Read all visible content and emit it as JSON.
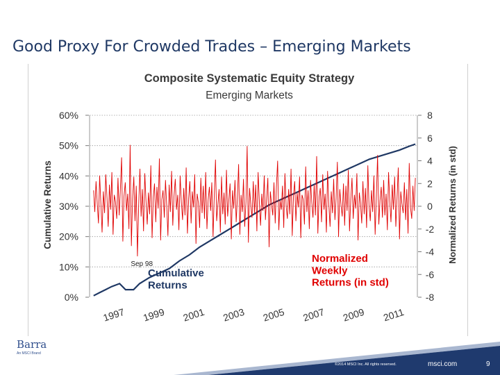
{
  "slide": {
    "title": "Good Proxy For Crowded Trades – Emerging Markets",
    "logo": "Barra",
    "logo_sub": "An MSCI Brand",
    "copyright": "©2014 MSCI Inc. All rights reserved.",
    "site": "msci.com",
    "page": "9"
  },
  "colors": {
    "cumulative": "#1f3864",
    "weekly": "#e00000",
    "title_blue": "#1f3864",
    "footer": "#1f3a6e"
  },
  "chart_data": {
    "type": "line",
    "title": "Composite Systematic Equity Strategy",
    "subtitle": "Emerging Markets",
    "ylabel_left": "Cumulative Returns",
    "ylabel_right": "Normalized Returns (in std)",
    "x_range": [
      1996.5,
      2012.9
    ],
    "ylim_left": [
      0,
      60
    ],
    "ylim_right": [
      -8,
      8
    ],
    "y_ticks_left": [
      "0%",
      "10%",
      "20%",
      "30%",
      "40%",
      "50%",
      "60%"
    ],
    "y_ticks_right": [
      "-8",
      "-6",
      "-4",
      "-2",
      "0",
      "2",
      "4",
      "6",
      "8"
    ],
    "x_ticks": [
      "1997",
      "1999",
      "2001",
      "2003",
      "2005",
      "2007",
      "2009",
      "2011"
    ],
    "grid": "horizontal dotted",
    "annotations": [
      {
        "text": "Sep 98",
        "x": 1998.7,
        "y_right": -4.4
      },
      {
        "text": "Cumulative Returns",
        "x": 2002.2,
        "y_left": 9,
        "series": "cumulative"
      },
      {
        "text": "Normalized Weekly Returns (in std)",
        "x": 2010.0,
        "y_left": 12,
        "series": "weekly"
      }
    ],
    "series": [
      {
        "name": "Cumulative Returns",
        "axis": "left",
        "x": [
          1996.7,
          1997.0,
          1997.3,
          1997.6,
          1998.0,
          1998.3,
          1998.7,
          1999.0,
          1999.5,
          2000.0,
          2000.5,
          2001.0,
          2001.5,
          2002.0,
          2002.5,
          2003.0,
          2003.5,
          2004.0,
          2004.5,
          2005.0,
          2005.5,
          2006.0,
          2006.5,
          2007.0,
          2007.5,
          2008.0,
          2008.5,
          2009.0,
          2009.5,
          2010.0,
          2010.5,
          2011.0,
          2011.5,
          2012.0,
          2012.5,
          2012.8
        ],
        "values": [
          0.5,
          1.5,
          2.5,
          3.5,
          4.5,
          2.5,
          2.5,
          4.5,
          6.5,
          8.0,
          9.5,
          12.0,
          14.0,
          16.5,
          18.5,
          20.5,
          22.5,
          24.5,
          26.5,
          28.5,
          30.5,
          32.0,
          33.5,
          35.0,
          36.5,
          38.0,
          39.5,
          41.0,
          42.5,
          44.0,
          45.5,
          46.5,
          47.5,
          48.5,
          49.8,
          50.5
        ]
      },
      {
        "name": "Normalized Weekly Returns (in std)",
        "axis": "right",
        "x_start": 1996.7,
        "x_end": 2012.8,
        "values": [
          1.4,
          -0.5,
          2.2,
          0.3,
          -1.5,
          2.7,
          0.2,
          -2.3,
          1.3,
          -0.6,
          2.8,
          0.7,
          -1.8,
          1.9,
          -0.3,
          3.0,
          -2.5,
          1.0,
          0.4,
          -1.1,
          2.5,
          -0.8,
          1.6,
          4.3,
          -3.1,
          0.9,
          2.1,
          -0.4,
          1.1,
          -2.0,
          5.4,
          -3.5,
          0.6,
          2.6,
          -1.3,
          1.8,
          -4.4,
          0.1,
          3.3,
          -0.9,
          1.5,
          -2.2,
          2.9,
          0.5,
          -1.6,
          1.2,
          -0.7,
          3.6,
          -2.8,
          0.8,
          2.0,
          -1.4,
          1.7,
          -0.2,
          4.2,
          -3.0,
          0.6,
          1.4,
          -1.0,
          2.3,
          0.0,
          -2.6,
          1.9,
          -0.5,
          3.1,
          -1.7,
          0.9,
          2.4,
          -0.3,
          1.0,
          -2.1,
          2.7,
          0.4,
          -1.2,
          1.6,
          -0.8,
          3.4,
          -2.4,
          0.7,
          2.2,
          -1.5,
          1.3,
          -0.1,
          2.8,
          -3.3,
          1.1,
          0.3,
          -1.9,
          2.5,
          -0.6,
          1.8,
          -1.1,
          3.0,
          -2.0,
          0.5,
          1.7,
          -0.4,
          2.1,
          -2.7,
          0.9,
          4.1,
          -1.3,
          0.2,
          1.5,
          -2.3,
          2.6,
          -0.7,
          1.2,
          -1.6,
          3.2,
          -0.9,
          0.6,
          2.0,
          -2.9,
          1.4,
          -0.2,
          2.3,
          -1.4,
          0.8,
          3.7,
          -2.5,
          1.0,
          -0.5,
          2.4,
          -1.8,
          0.4,
          5.3,
          -3.2,
          1.6,
          0.1,
          -1.0,
          2.2,
          -0.6,
          1.9,
          -2.2,
          3.0,
          0.3,
          -1.7,
          1.1,
          -0.4,
          2.7,
          -1.2,
          0.7,
          2.5,
          -3.6,
          1.3,
          0.2,
          -0.8,
          2.1,
          -1.5,
          1.7,
          4.0,
          -2.1,
          0.5,
          -0.3,
          1.8,
          -1.9,
          2.9,
          0.0,
          -1.1,
          1.5,
          -0.7,
          3.3,
          -2.6,
          0.9,
          2.2,
          -1.3,
          1.2,
          -0.1,
          2.6,
          -2.8,
          1.0,
          0.6,
          -1.6,
          3.5,
          -0.5,
          1.4,
          -2.0,
          2.3,
          0.4,
          -1.0,
          1.9,
          -0.8,
          4.4,
          -2.4,
          0.8,
          1.6,
          -1.4,
          2.8,
          -0.3,
          1.1,
          -2.3,
          3.1,
          0.2,
          -1.8,
          1.3,
          -0.6,
          2.4,
          -1.2,
          0.7,
          3.9,
          -2.7,
          1.5,
          0.1,
          -0.9,
          2.0,
          -1.7,
          1.8,
          -0.4,
          3.2,
          -2.2,
          0.6,
          2.5,
          -1.1,
          1.0,
          -0.2,
          2.9,
          -3.0,
          1.2,
          0.3,
          -1.5,
          2.2,
          -0.7,
          1.6,
          -1.9,
          3.6,
          0.0,
          -1.3,
          1.4,
          -0.5,
          2.7,
          -2.5,
          0.9,
          4.5,
          -1.6,
          0.5,
          1.7,
          -1.0,
          2.3,
          -0.8,
          1.1,
          -2.1,
          3.0,
          0.4,
          -1.4,
          1.9,
          -0.3,
          2.6,
          -1.8,
          0.8,
          3.4,
          -2.9,
          1.3,
          0.2,
          -0.6,
          2.1,
          -1.2,
          1.5,
          -2.4,
          3.8,
          -0.1,
          -1.1,
          1.8,
          -0.4,
          2.5
        ]
      }
    ]
  }
}
